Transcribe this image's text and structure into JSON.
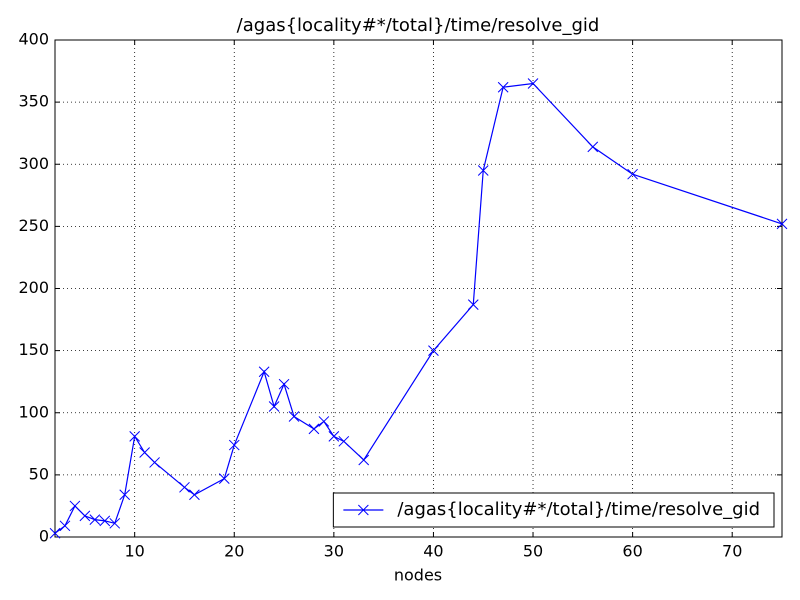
{
  "chart_data": {
    "type": "line",
    "title": "/agas{locality#*/total}/time/resolve_gid",
    "x_label": "nodes",
    "x": [
      2,
      3,
      4,
      5,
      6,
      7,
      8,
      9,
      10,
      11,
      12,
      15,
      16,
      19,
      20,
      23,
      24,
      25,
      26,
      28,
      29,
      30,
      31,
      33,
      40,
      44,
      45,
      47,
      50,
      56,
      60,
      75
    ],
    "series": [
      {
        "name": "/agas{locality#*/total}/time/resolve_gid",
        "color": "#0000ff",
        "marker": "x",
        "values": [
          3,
          9,
          25,
          17,
          14,
          13,
          11,
          34,
          81,
          68,
          60,
          40,
          34,
          47,
          74,
          133,
          105,
          123,
          97,
          87,
          93,
          81,
          77,
          62,
          150,
          187,
          295,
          362,
          365,
          314,
          292,
          252
        ]
      }
    ],
    "xlim": [
      2,
      75
    ],
    "ylim": [
      0,
      400
    ],
    "xticks": [
      10,
      20,
      30,
      40,
      50,
      60,
      70
    ],
    "yticks": [
      0,
      50,
      100,
      150,
      200,
      250,
      300,
      350,
      400
    ],
    "grid": true,
    "legend": "lower right"
  }
}
